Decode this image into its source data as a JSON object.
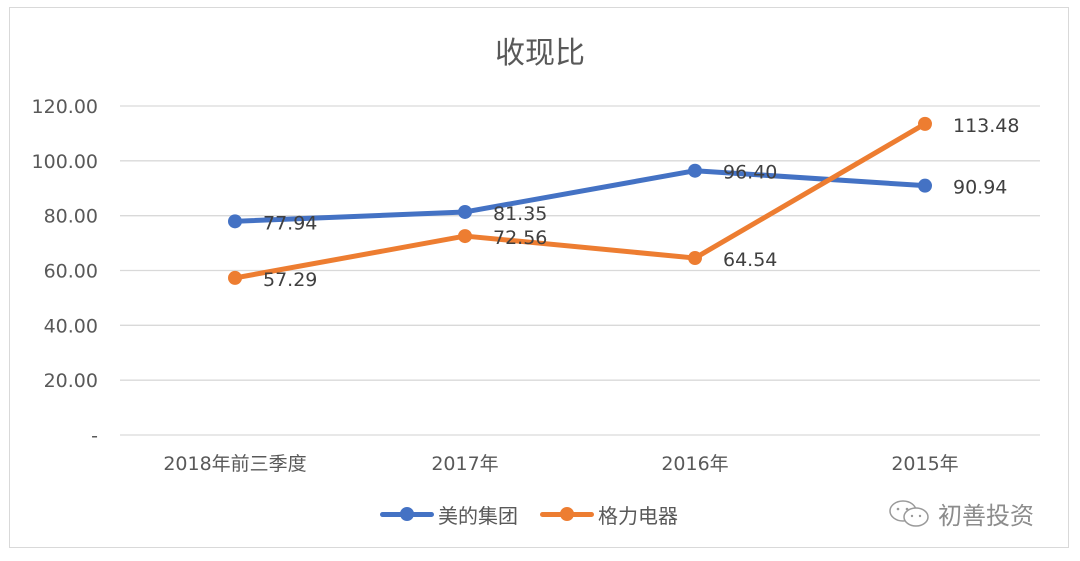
{
  "chart_data": {
    "type": "line",
    "title": "收现比",
    "xlabel": "",
    "ylabel": "",
    "categories": [
      "2018年前三季度",
      "2017年",
      "2016年",
      "2015年"
    ],
    "series": [
      {
        "name": "美的集团",
        "color": "#4472c4",
        "values": [
          77.94,
          81.35,
          96.4,
          90.94
        ],
        "labels": [
          "77.94",
          "81.35",
          "96.40",
          "90.94"
        ]
      },
      {
        "name": "格力电器",
        "color": "#ed7d31",
        "values": [
          57.29,
          72.56,
          64.54,
          113.48
        ],
        "labels": [
          "57.29",
          "72.56",
          "64.54",
          "113.48"
        ]
      }
    ],
    "ylim": [
      0,
      120
    ],
    "yticks": [
      0,
      20,
      40,
      60,
      80,
      100,
      120
    ],
    "ytick_labels": [
      "-",
      "20.00",
      "40.00",
      "60.00",
      "80.00",
      "100.00",
      "120.00"
    ],
    "grid": true,
    "legend_position": "bottom"
  },
  "legend": {
    "items": [
      {
        "label": "美的集团",
        "color": "#4472c4"
      },
      {
        "label": "格力电器",
        "color": "#ed7d31"
      }
    ]
  },
  "watermark": {
    "text": "初善投资",
    "icon": "wechat-icon"
  }
}
